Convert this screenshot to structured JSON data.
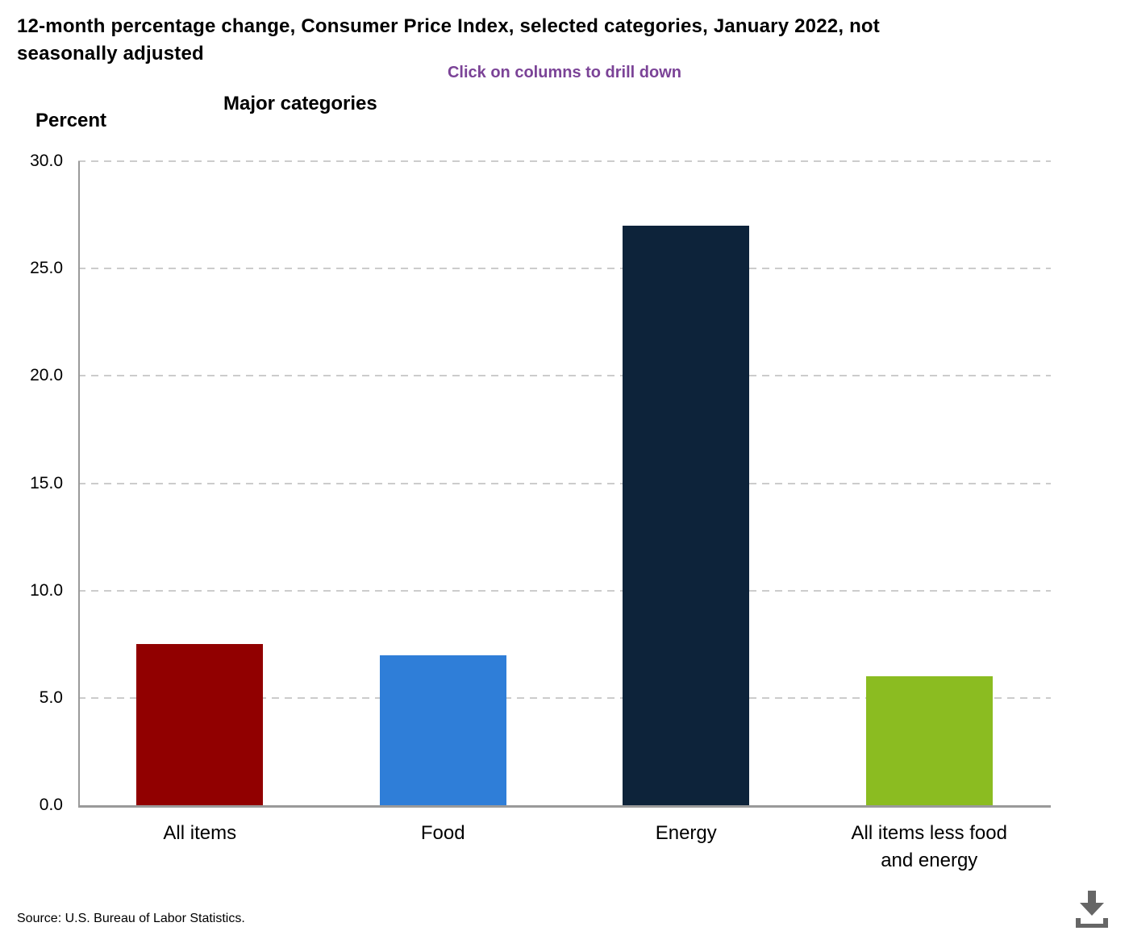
{
  "header": {
    "title": "12-month percentage change, Consumer Price Index, selected categories, January 2022, not\nseasonally adjusted",
    "subtitle": "Click on columns to drill down",
    "subtitle_color": "#7B4397"
  },
  "chart": {
    "axis_title": "Percent",
    "group_title": "Major categories"
  },
  "chart_data": {
    "type": "bar",
    "title": "Major categories",
    "ylabel": "Percent",
    "xlabel": "",
    "ylim": [
      0,
      30
    ],
    "yticks": [
      0,
      5,
      10,
      15,
      20,
      25,
      30
    ],
    "tick_format_decimals": 1,
    "grid": true,
    "legend_position": "none",
    "categories": [
      "All items",
      "Food",
      "Energy",
      "All items less food\nand energy"
    ],
    "values": [
      7.5,
      7.0,
      27.0,
      6.0
    ],
    "colors": [
      "#910000",
      "#2F7ED8",
      "#0D233A",
      "#8BBC21"
    ],
    "colors_meaning": [
      "all-items",
      "food",
      "energy",
      "all-items-less-food-and-energy"
    ]
  },
  "footer": {
    "source": "Source: U.S. Bureau of Labor Statistics."
  },
  "icons": {
    "download": "download-icon",
    "download_color": "#666666"
  }
}
